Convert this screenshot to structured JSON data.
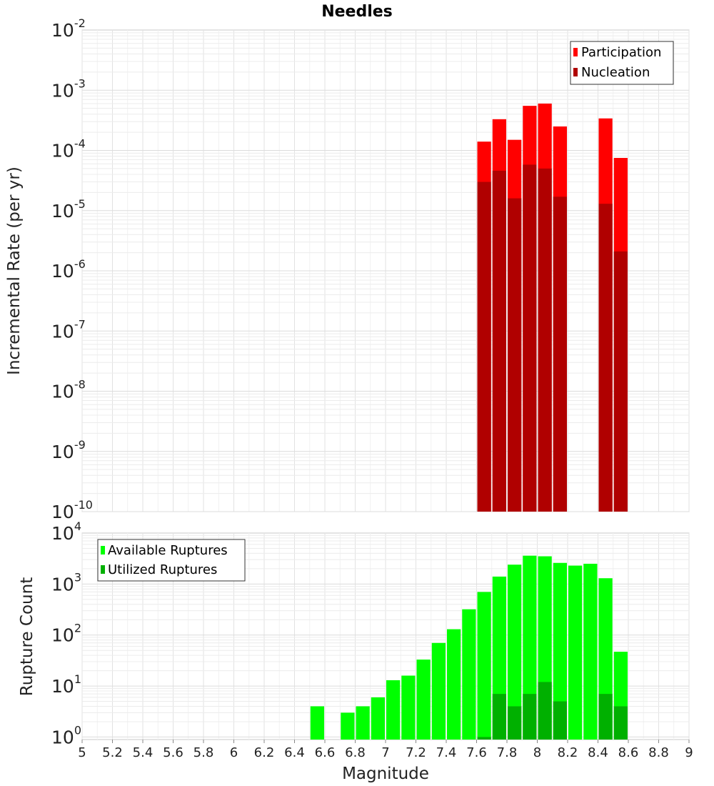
{
  "title": "Needles",
  "chart_data": [
    {
      "type": "bar",
      "name": "rate-panel",
      "title": "Needles",
      "xlabel": "",
      "ylabel": "Incremental Rate (per yr)",
      "yscale": "log",
      "xlim": [
        5,
        9
      ],
      "ylim_exponents": [
        -10,
        -2
      ],
      "bin_width": 0.1,
      "legend_position": "top-right",
      "series": [
        {
          "name": "Participation",
          "color": "#ff0000",
          "x": [
            7.65,
            7.75,
            7.85,
            7.95,
            8.05,
            8.15,
            8.45,
            8.55
          ],
          "values": [
            0.00014,
            0.00033,
            0.00015,
            0.00055,
            0.0006,
            0.00025,
            0.00034,
            7.5e-05
          ]
        },
        {
          "name": "Nucleation",
          "color": "#b00000",
          "x": [
            7.65,
            7.75,
            7.85,
            7.95,
            8.05,
            8.15,
            8.45,
            8.55
          ],
          "values": [
            3e-05,
            4.6e-05,
            1.6e-05,
            5.8e-05,
            5e-05,
            1.7e-05,
            1.3e-05,
            2.1e-06
          ]
        }
      ],
      "yticks": [
        {
          "base": "10",
          "exp": "-2"
        },
        {
          "base": "10",
          "exp": "-3"
        },
        {
          "base": "10",
          "exp": "-4"
        },
        {
          "base": "10",
          "exp": "-5"
        },
        {
          "base": "10",
          "exp": "-6"
        },
        {
          "base": "10",
          "exp": "-7"
        },
        {
          "base": "10",
          "exp": "-8"
        },
        {
          "base": "10",
          "exp": "-9"
        },
        {
          "base": "10",
          "exp": "-10"
        }
      ]
    },
    {
      "type": "bar",
      "name": "count-panel",
      "xlabel": "Magnitude",
      "ylabel": "Rupture Count",
      "yscale": "log",
      "xlim": [
        5,
        9
      ],
      "ylim_exponents": [
        -0.05,
        4
      ],
      "bin_width": 0.1,
      "legend_position": "top-left",
      "series": [
        {
          "name": "Available Ruptures",
          "color": "#00ff00",
          "x": [
            6.55,
            6.75,
            6.85,
            6.95,
            7.05,
            7.15,
            7.25,
            7.35,
            7.45,
            7.55,
            7.65,
            7.75,
            7.85,
            7.95,
            8.05,
            8.15,
            8.25,
            8.35,
            8.45,
            8.55
          ],
          "values": [
            4,
            3,
            4,
            6,
            13,
            16,
            33,
            70,
            130,
            320,
            700,
            1400,
            2400,
            3600,
            3500,
            2600,
            2300,
            2500,
            1300,
            47
          ]
        },
        {
          "name": "Utilized Ruptures",
          "color": "#00b000",
          "x": [
            7.65,
            7.75,
            7.85,
            7.95,
            8.05,
            8.15,
            8.45,
            8.55
          ],
          "values": [
            1,
            7,
            4,
            7,
            12,
            5,
            7,
            4
          ]
        }
      ],
      "yticks": [
        {
          "base": "10",
          "exp": "4"
        },
        {
          "base": "10",
          "exp": "3"
        },
        {
          "base": "10",
          "exp": "2"
        },
        {
          "base": "10",
          "exp": "1"
        },
        {
          "base": "10",
          "exp": "0"
        }
      ],
      "xticks": [
        "5",
        "5.2",
        "5.4",
        "5.6",
        "5.8",
        "6",
        "6.2",
        "6.4",
        "6.6",
        "6.8",
        "7",
        "7.2",
        "7.4",
        "7.6",
        "7.8",
        "8",
        "8.2",
        "8.4",
        "8.6",
        "8.8",
        "9"
      ]
    }
  ]
}
